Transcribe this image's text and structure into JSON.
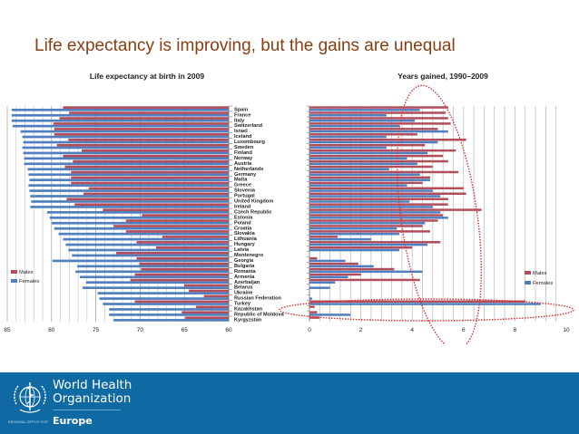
{
  "slide": {
    "title": "Life expectancy is improving, but the gains are unequal"
  },
  "footer": {
    "org_line1": "World Health",
    "org_line2": "Organization",
    "regional_office": "REGIONAL OFFICE FOR",
    "region": "Europe",
    "background_color": "#0f6aa3"
  },
  "annotations": {
    "ellipse_1": "dotted red ellipse around top gaining countries",
    "ellipse_2": "dotted red ellipse around Turkey row"
  },
  "chart_data": [
    {
      "type": "bar",
      "orientation": "horizontal",
      "title": "Life expectancy at birth in 2009",
      "xlabel": "",
      "ylabel": "",
      "xlim": [
        85,
        60
      ],
      "x_reversed": true,
      "xticks": [
        85,
        80,
        75,
        70,
        65,
        60
      ],
      "grid": true,
      "legend": "left",
      "categories": [
        "Spain",
        "France",
        "Italy",
        "Switzerland",
        "Israel",
        "Iceland",
        "Luxembourg",
        "Sweden",
        "Finland",
        "Norway",
        "Austria",
        "Netherlands",
        "Germany",
        "Malta",
        "Greece",
        "Slovenia",
        "Portugal",
        "United Kingdom",
        "Ireland",
        "Czech Republic",
        "Estonia",
        "Poland",
        "Croatia",
        "Slovakia",
        "Lithuania",
        "Hungary",
        "Latvia",
        "Montenegro",
        "Georgia",
        "Bulgaria",
        "Romania",
        "Armenia",
        "Azerbaijan",
        "Belarus",
        "Ukraine",
        "Russian Federation",
        "Turkey",
        "Kazakhstan",
        "Republic of Moldova",
        "Kyrgyzstan"
      ],
      "series": [
        {
          "name": "Males",
          "color": "#b14e5b",
          "values": [
            78.7,
            78.0,
            79.1,
            79.8,
            79.7,
            79.7,
            78.1,
            79.4,
            76.6,
            78.7,
            77.6,
            78.5,
            77.8,
            77.8,
            77.8,
            75.8,
            76.4,
            78.3,
            77.4,
            74.2,
            69.8,
            71.6,
            73.0,
            71.6,
            67.5,
            70.4,
            68.2,
            72.7,
            70.4,
            70.1,
            69.9,
            70.6,
            71.1,
            65.0,
            64.5,
            62.8,
            70.6,
            63.7,
            65.3,
            64.9
          ]
        },
        {
          "name": "Females",
          "color": "#4f7fbf",
          "values": [
            84.5,
            84.5,
            84.5,
            84.4,
            83.5,
            83.3,
            83.2,
            83.3,
            83.2,
            83.1,
            83.1,
            82.7,
            82.6,
            82.5,
            82.6,
            82.5,
            82.4,
            82.3,
            82.4,
            80.5,
            80.2,
            80.0,
            79.7,
            79.2,
            78.7,
            78.4,
            78.1,
            77.7,
            79.9,
            77.1,
            77.3,
            76.8,
            76.1,
            76.5,
            74.8,
            74.6,
            74.2,
            73.5,
            73.5,
            73.0
          ]
        }
      ]
    },
    {
      "type": "bar",
      "orientation": "horizontal",
      "title": "Years gained, 1990–2009",
      "xlabel": "",
      "ylabel": "",
      "xlim": [
        0,
        10
      ],
      "xticks": [
        0,
        2,
        4,
        6,
        8,
        10
      ],
      "grid": true,
      "legend": "right",
      "categories": [
        "Spain",
        "France",
        "Italy",
        "Switzerland",
        "Israel",
        "Iceland",
        "Luxembourg",
        "Sweden",
        "Finland",
        "Norway",
        "Austria",
        "Netherlands",
        "Germany",
        "Malta",
        "Greece",
        "Slovenia",
        "Portugal",
        "United Kingdom",
        "Ireland",
        "Czech Republic",
        "Estonia",
        "Poland",
        "Croatia",
        "Slovakia",
        "Lithuania",
        "Hungary",
        "Latvia",
        "Montenegro",
        "Georgia",
        "Bulgaria",
        "Romania",
        "Armenia",
        "Azerbaijan",
        "Belarus",
        "Ukraine",
        "Russian Federation",
        "Turkey",
        "Kazakhstan",
        "Republic of Moldova",
        "Kyrgyzstan"
      ],
      "series": [
        {
          "name": "Males",
          "color": "#b14e5b",
          "values": [
            5.4,
            5.3,
            5.4,
            5.5,
            5.0,
            4.2,
            6.1,
            4.5,
            5.7,
            5.2,
            5.4,
            4.8,
            5.8,
            4.7,
            4.4,
            6.0,
            6.1,
            5.4,
            5.4,
            6.7,
            5.2,
            5.0,
            4.4,
            4.7,
            1.1,
            5.1,
            4.0,
            0.0,
            0.3,
            1.9,
            3.3,
            2.0,
            4.3,
            0.0,
            0.0,
            0.0,
            8.4,
            0.2,
            0.3,
            0.4
          ]
        },
        {
          "name": "Females",
          "color": "#4f7fbf",
          "values": [
            4.3,
            3.0,
            4.1,
            3.5,
            5.4,
            3.0,
            5.0,
            3.0,
            4.6,
            3.8,
            4.2,
            3.1,
            4.3,
            4.7,
            3.8,
            4.8,
            5.1,
            3.9,
            4.8,
            5.1,
            5.4,
            4.5,
            3.4,
            3.5,
            2.4,
            4.6,
            3.5,
            0.0,
            1.4,
            2.5,
            4.4,
            1.5,
            1.0,
            0.8,
            0.0,
            0.1,
            9.0,
            0.0,
            1.6,
            0.0
          ]
        }
      ]
    }
  ]
}
